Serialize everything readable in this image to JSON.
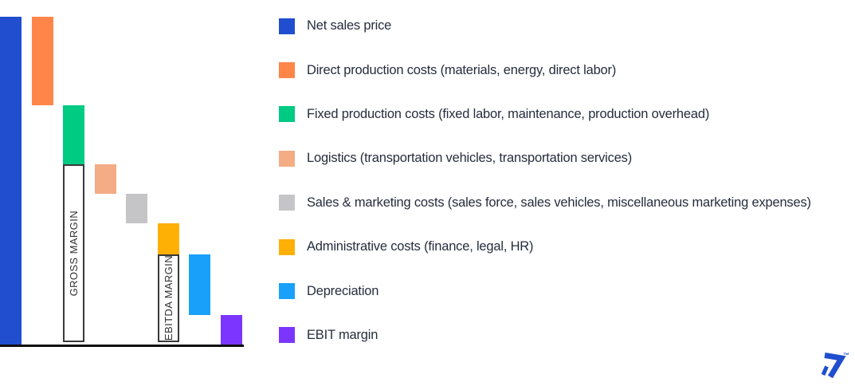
{
  "chart_data": {
    "type": "bar",
    "subtype": "waterfall",
    "title": "",
    "xlabel": "",
    "ylabel": "",
    "axis_tick_labels_shown": false,
    "value_basis": "index estimated from bar heights, net sales price = 100",
    "bars": [
      {
        "name": "Net sales price",
        "col": 0,
        "high": 100,
        "low": 0,
        "color": "#204ECF",
        "kind": "total"
      },
      {
        "name": "Direct production costs",
        "col": 1,
        "high": 100,
        "low": 73,
        "color": "#FF8549",
        "kind": "decrease"
      },
      {
        "name": "Fixed production costs",
        "col": 2,
        "high": 73,
        "low": 55,
        "color": "#00CB83",
        "kind": "decrease"
      },
      {
        "name": "Gross margin",
        "col": 2,
        "high": 55,
        "low": 0,
        "color": "#FFFFFF",
        "kind": "subtotal",
        "outlined": true,
        "label": "GROSS MARGIN"
      },
      {
        "name": "Logistics",
        "col": 3,
        "high": 55,
        "low": 46,
        "color": "#F3AC84",
        "kind": "decrease"
      },
      {
        "name": "Sales & marketing costs",
        "col": 4,
        "high": 46,
        "low": 37,
        "color": "#C5C5C8",
        "kind": "decrease"
      },
      {
        "name": "Administrative costs",
        "col": 5,
        "high": 37,
        "low": 27.5,
        "color": "#FFB005",
        "kind": "decrease"
      },
      {
        "name": "EBITDA margin",
        "col": 5,
        "high": 27.5,
        "low": 0,
        "color": "#FFFFFF",
        "kind": "subtotal",
        "outlined": true,
        "label": "EBITDA MARGIN"
      },
      {
        "name": "Depreciation",
        "col": 6,
        "high": 27.5,
        "low": 9,
        "color": "#18A0FB",
        "kind": "decrease"
      },
      {
        "name": "EBIT margin",
        "col": 7,
        "high": 9,
        "low": 0,
        "color": "#7C35FE",
        "kind": "total"
      }
    ]
  },
  "legend": {
    "items": [
      {
        "label": "Net sales price",
        "color": "#204ECF"
      },
      {
        "label": "Direct production costs (materials, energy, direct labor)",
        "color": "#FF8549"
      },
      {
        "label": "Fixed production costs (fixed labor, maintenance, production overhead)",
        "color": "#00CB83"
      },
      {
        "label": "Logistics (transportation vehicles, transportation services)",
        "color": "#F3AC84"
      },
      {
        "label": "Sales & marketing costs (sales force, sales vehicles, miscellaneous marketing expenses)",
        "color": "#C5C5C8"
      },
      {
        "label": "Administrative costs (finance, legal, HR)",
        "color": "#FFB005"
      },
      {
        "label": "Depreciation",
        "color": "#18A0FB"
      },
      {
        "label": "EBIT margin",
        "color": "#7C35FE"
      }
    ]
  },
  "logo": {
    "trademark": "™",
    "color": "#204ECF"
  }
}
